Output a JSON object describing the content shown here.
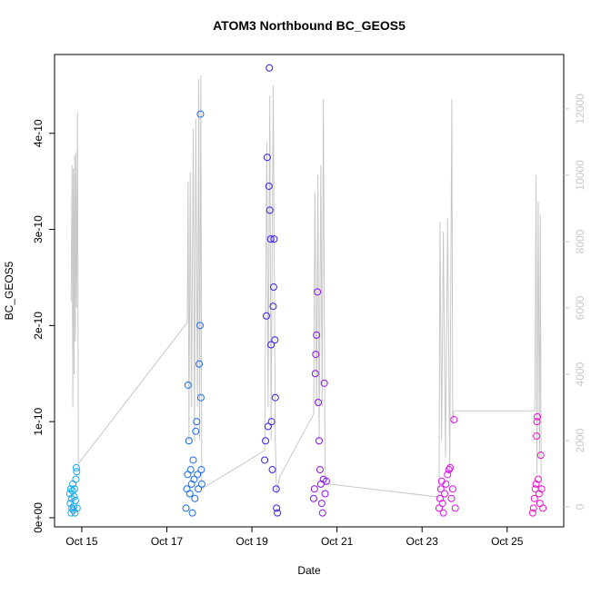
{
  "chart_data": {
    "type": "scatter",
    "title": "ATOM3 Northbound BC_GEOS5",
    "xlabel": "Date",
    "ylabel": "BC_GEOS5",
    "xlim": [
      14.36,
      26.33
    ],
    "xticks": [
      {
        "value": 15,
        "label": "Oct 15"
      },
      {
        "value": 17,
        "label": "Oct 17"
      },
      {
        "value": 19,
        "label": "Oct 19"
      },
      {
        "value": 21,
        "label": "Oct 21"
      },
      {
        "value": 23,
        "label": "Oct 23"
      },
      {
        "value": 25,
        "label": "Oct 25"
      }
    ],
    "ylim": [
      -9.5e-12,
      4.82e-10
    ],
    "yticks": [
      {
        "value": 0,
        "label": "0e+00"
      },
      {
        "value": 1e-10,
        "label": "1e-10"
      },
      {
        "value": 2e-10,
        "label": "2e-10"
      },
      {
        "value": 3e-10,
        "label": "3e-10"
      },
      {
        "value": 4e-10,
        "label": "4e-10"
      }
    ],
    "y2lim": [
      -600,
      13640
    ],
    "y2ticks": [
      0,
      2000,
      4000,
      6000,
      8000,
      10000,
      12000
    ],
    "series": [
      {
        "color": "#1aa8f0",
        "x": [
          14.72,
          14.73,
          14.74,
          14.75,
          14.76,
          14.77,
          14.78,
          14.79,
          14.8,
          14.81,
          14.82,
          14.83,
          14.84,
          14.85,
          14.86,
          14.87,
          14.88,
          14.89
        ],
        "values": [
          2.5e-11,
          1.5e-11,
          3e-11,
          5e-12,
          2e-11,
          1e-11,
          2.8e-11,
          3.5e-11,
          8e-12,
          1.2e-11,
          2.2e-11,
          3e-11,
          5e-12,
          1.8e-11,
          4e-11,
          5.2e-11,
          4.8e-11,
          1e-11
        ]
      },
      {
        "color": "#1a6cf0",
        "x": [
          17.45,
          17.47,
          17.49,
          17.5,
          17.52,
          17.54,
          17.56,
          17.58,
          17.6,
          17.62,
          17.64,
          17.66,
          17.68,
          17.7,
          17.72,
          17.74,
          17.76,
          17.78,
          17.79,
          17.8,
          17.81,
          17.82
        ],
        "values": [
          1e-11,
          3e-11,
          4.5e-11,
          1.38e-10,
          8e-11,
          2.5e-11,
          5e-11,
          3.5e-11,
          5e-12,
          6e-11,
          4e-11,
          2e-11,
          9e-11,
          1e-10,
          4.5e-11,
          3e-11,
          1.6e-10,
          2e-10,
          4.2e-10,
          1.25e-10,
          5e-11,
          3.5e-11
        ]
      },
      {
        "color": "#3a20e8",
        "x": [
          19.3,
          19.32,
          19.34,
          19.36,
          19.38,
          19.4,
          19.41,
          19.42,
          19.44,
          19.45,
          19.46,
          19.48,
          19.5,
          19.51,
          19.52,
          19.54,
          19.55,
          19.57,
          19.58,
          19.6
        ],
        "values": [
          6e-11,
          8e-11,
          2.1e-10,
          3.75e-10,
          9.5e-11,
          3.45e-10,
          4.68e-10,
          3.2e-10,
          2.9e-10,
          1.8e-10,
          1e-10,
          5e-11,
          2.2e-10,
          2.4e-10,
          2.9e-10,
          1.85e-10,
          1.25e-10,
          3e-11,
          1e-11,
          5e-12
        ]
      },
      {
        "color": "#8a12f0",
        "x": [
          20.45,
          20.47,
          20.49,
          20.5,
          20.52,
          20.54,
          20.56,
          20.58,
          20.6,
          20.62,
          20.64,
          20.66,
          20.68,
          20.7,
          20.72,
          20.75
        ],
        "values": [
          2e-11,
          3e-11,
          1.5e-10,
          1.7e-10,
          1.9e-10,
          2.35e-10,
          1.2e-10,
          8e-11,
          5e-11,
          3.5e-11,
          1.5e-11,
          5e-12,
          4e-11,
          1.4e-10,
          2.5e-11,
          3.8e-11
        ]
      },
      {
        "color": "#dc12e8",
        "x": [
          23.4,
          23.42,
          23.44,
          23.46,
          23.48,
          23.5,
          23.53,
          23.56,
          23.6,
          23.63,
          23.66,
          23.69,
          23.72,
          23.75,
          23.78
        ],
        "values": [
          1e-11,
          2e-11,
          3e-11,
          3.8e-11,
          1.5e-11,
          5e-12,
          2.5e-11,
          3.5e-11,
          4.5e-11,
          5e-11,
          5.2e-11,
          2e-11,
          3e-11,
          1.02e-10,
          1e-11
        ]
      },
      {
        "color": "#f012c8",
        "x": [
          25.6,
          25.62,
          25.64,
          25.66,
          25.68,
          25.69,
          25.7,
          25.71,
          25.73,
          25.75,
          25.77,
          25.79,
          25.81,
          25.84
        ],
        "values": [
          5e-12,
          1e-11,
          2e-11,
          3e-11,
          3.5e-11,
          8.5e-11,
          1e-10,
          1.05e-10,
          4e-11,
          2.5e-11,
          1.5e-11,
          6.5e-11,
          3e-11,
          1e-11
        ]
      },
      {
        "type": "line",
        "axis": "y2",
        "color": "#c8c8c8",
        "x": [
          14.75,
          14.77,
          14.79,
          14.8,
          14.82,
          14.83,
          14.85,
          14.86,
          14.88,
          14.9,
          14.92,
          17.48,
          17.5,
          17.52,
          17.55,
          17.58,
          17.62,
          17.65,
          17.68,
          17.72,
          17.75,
          17.77,
          17.8,
          17.82,
          19.3,
          19.35,
          19.38,
          19.42,
          19.45,
          19.5,
          19.55,
          19.58,
          19.65,
          20.45,
          20.48,
          20.52,
          20.55,
          20.58,
          20.62,
          20.65,
          20.68,
          20.72,
          20.75,
          23.4,
          23.42,
          23.46,
          23.5,
          23.55,
          23.6,
          23.65,
          23.7,
          23.72,
          23.75,
          25.65,
          25.68,
          25.7,
          25.73,
          25.76,
          25.78,
          25.8
        ],
        "values": [
          6200,
          10300,
          3000,
          10200,
          4000,
          10600,
          5000,
          10700,
          6000,
          11900,
          1300,
          5560,
          9800,
          2000,
          10100,
          3000,
          11400,
          2000,
          11700,
          3000,
          12900,
          2000,
          13000,
          550,
          1700,
          11000,
          3000,
          12400,
          2000,
          12700,
          2000,
          400,
          900,
          2800,
          9500,
          3000,
          10000,
          2000,
          10300,
          3000,
          12300,
          1000,
          700,
          300,
          8600,
          2000,
          8300,
          1500,
          8700,
          1000,
          12300,
          2500,
          2900,
          2900,
          10000,
          1000,
          9200,
          1500,
          8800,
          500
        ]
      }
    ]
  }
}
